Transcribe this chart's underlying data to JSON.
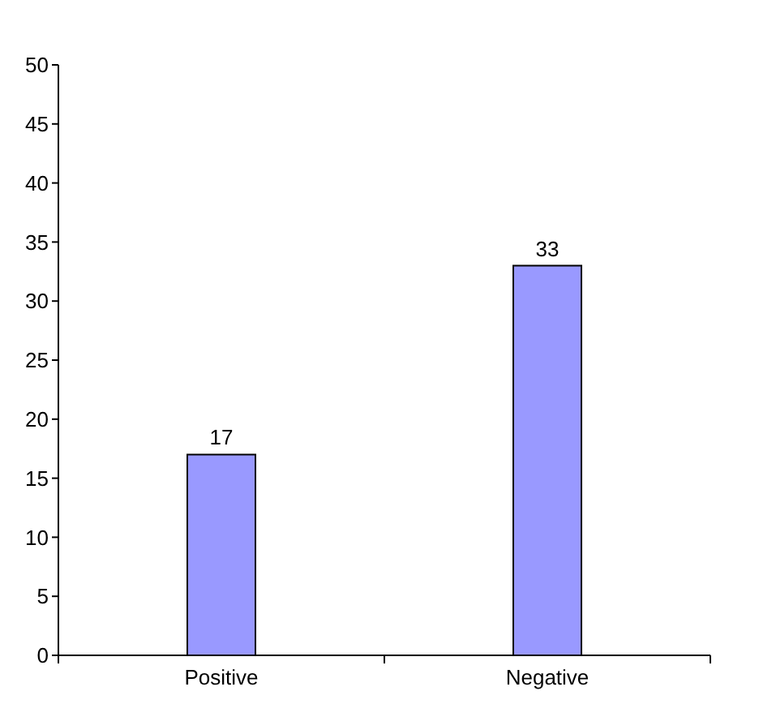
{
  "chart_data": {
    "type": "bar",
    "categories": [
      "Positive",
      "Negative"
    ],
    "values": [
      17,
      33
    ],
    "color": "#9999ff",
    "ylim": [
      0,
      50
    ],
    "yticks": [
      0,
      5,
      10,
      15,
      20,
      25,
      30,
      35,
      40,
      45,
      50
    ],
    "data_labels": true,
    "grid": false
  }
}
